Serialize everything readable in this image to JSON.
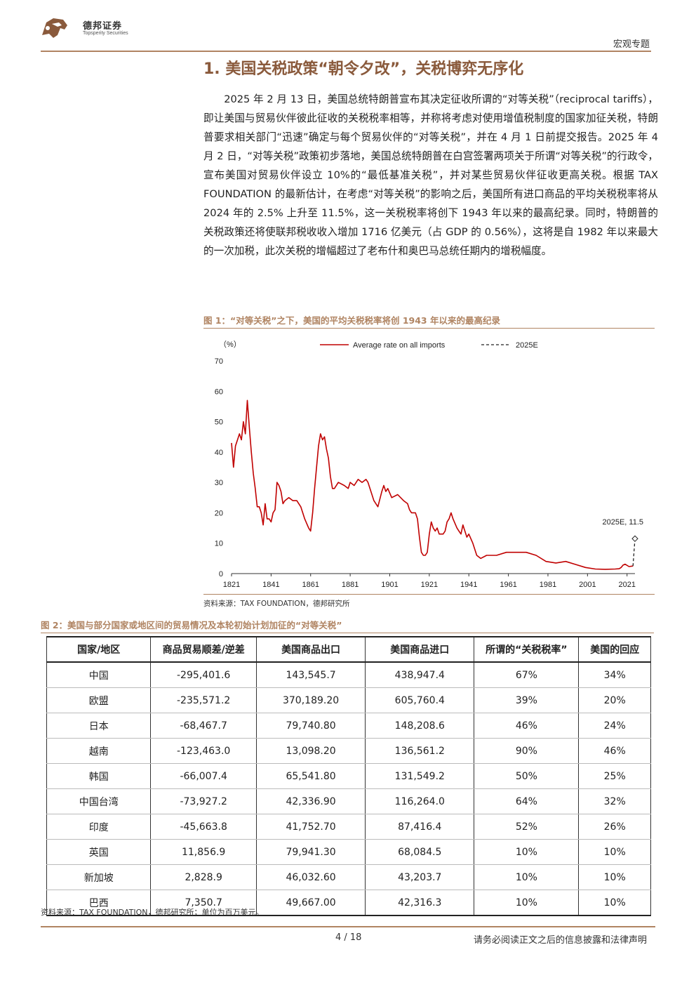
{
  "header": {
    "brand_cn": "德邦证券",
    "brand_en": "Topsperity Securities",
    "category": "宏观专题"
  },
  "section": {
    "title": "1. 美国关税政策“朝令夕改”，关税博弈无序化",
    "paragraph": "2025 年 2 月 13 日，美国总统特朗普宣布其决定征收所谓的“对等关税”（reciprocal tariffs），即让美国与贸易伙伴彼此征收的关税税率相等，并称将考虑对使用增值税制度的国家加征关税，特朗普要求相关部门“迅速”确定与每个贸易伙伴的“对等关税”，并在 4 月 1 日前提交报告。2025 年 4 月 2 日，“对等关税”政策初步落地，美国总统特朗普在白宫签署两项关于所谓“对等关税”的行政令，宣布美国对贸易伙伴设立 10%的“最低基准关税”，并对某些贸易伙伴征收更高关税。根据 TAX FOUNDATION 的最新估计，在考虑“对等关税”的影响之后，美国所有进口商品的平均关税税率将从 2024 年的 2.5% 上升至 11.5%，这一关税税率将创下 1943 年以来的最高纪录。同时，特朗普的关税政策还将使联邦税收收入增加 1716 亿美元（占 GDP 的 0.56%），这将是自 1982 年以来最大的一次加税，此次关税的增幅超过了老布什和奥巴马总统任期内的增税幅度。"
  },
  "figure1": {
    "caption": "图 1：“对等关税”之下，美国的平均关税税率将创 1943 年以来的最高纪录",
    "source": "资料来源：TAX FOUNDATION，德邦研究所"
  },
  "chart_data": {
    "type": "line",
    "ylabel": "（%）",
    "ylim": [
      0,
      70
    ],
    "yticks": [
      0,
      10,
      20,
      30,
      40,
      50,
      60,
      70
    ],
    "xlim": [
      1821,
      2025
    ],
    "xticks": [
      1821,
      1841,
      1861,
      1881,
      1901,
      1921,
      1941,
      1961,
      1981,
      2001,
      2021
    ],
    "legend_position": "top",
    "colors": {
      "series": "#c00000",
      "estimate": "#222222"
    },
    "series": [
      {
        "name": "Average rate on all imports",
        "style": "solid",
        "x": [
          1821,
          1822,
          1823,
          1824,
          1825,
          1826,
          1827,
          1828,
          1829,
          1830,
          1831,
          1832,
          1833,
          1834,
          1835,
          1836,
          1837,
          1838,
          1839,
          1840,
          1841,
          1842,
          1843,
          1844,
          1845,
          1846,
          1847,
          1848,
          1850,
          1852,
          1854,
          1856,
          1857,
          1858,
          1860,
          1861,
          1862,
          1863,
          1864,
          1865,
          1866,
          1867,
          1868,
          1869,
          1870,
          1871,
          1872,
          1873,
          1875,
          1878,
          1880,
          1881,
          1883,
          1885,
          1887,
          1889,
          1890,
          1891,
          1893,
          1895,
          1897,
          1898,
          1899,
          1900,
          1902,
          1905,
          1908,
          1910,
          1911,
          1912,
          1914,
          1915,
          1916,
          1917,
          1918,
          1919,
          1920,
          1921,
          1922,
          1923,
          1924,
          1925,
          1926,
          1927,
          1928,
          1929,
          1930,
          1931,
          1932,
          1933,
          1935,
          1936,
          1937,
          1938,
          1940,
          1941,
          1943,
          1945,
          1947,
          1950,
          1955,
          1960,
          1965,
          1970,
          1975,
          1980,
          1985,
          1990,
          1995,
          2000,
          2005,
          2010,
          2015,
          2017,
          2018,
          2019,
          2020,
          2022,
          2024
        ],
        "values": [
          43,
          35,
          42,
          44,
          46,
          44,
          50,
          46,
          57,
          48,
          40,
          33,
          28,
          22,
          22,
          20,
          16,
          23,
          18,
          18,
          17,
          20,
          21,
          30,
          29,
          27,
          23,
          24,
          25,
          24,
          24,
          22,
          20,
          18,
          15,
          14,
          20,
          28,
          35,
          42,
          46,
          44,
          45,
          41,
          38,
          32,
          28,
          28,
          30,
          29,
          28,
          30,
          29,
          31,
          30,
          31,
          30,
          28,
          24,
          22,
          27,
          29,
          27,
          28,
          25,
          26,
          24,
          23,
          21,
          20,
          20,
          18,
          12,
          7,
          6,
          6,
          7,
          13,
          17,
          15,
          14,
          15,
          13,
          13,
          13,
          14,
          17,
          18,
          20,
          18,
          15,
          14,
          13,
          16,
          12,
          13,
          10,
          6,
          5,
          6,
          6,
          7,
          7,
          7,
          6,
          4,
          3.5,
          4,
          3,
          2,
          1.5,
          1.4,
          1.5,
          1.6,
          2,
          2.8,
          3.1,
          2.3,
          2.5
        ]
      },
      {
        "name": "2025E",
        "style": "dashed",
        "x": [
          2024,
          2025
        ],
        "values": [
          2.5,
          11.5
        ]
      }
    ],
    "annotations": [
      {
        "text": "2025E, 11.5",
        "x": 2025,
        "y": 11.5
      }
    ]
  },
  "figure2": {
    "caption": "图 2：美国与部分国家或地区间的贸易情况及本轮初始计划加征的“对等关税”",
    "headers": [
      "国家/地区",
      "商品贸易顺差/逆差",
      "美国商品出口",
      "美国商品进口",
      "所谓的“关税税率”",
      "美国的回应"
    ],
    "rows": [
      [
        "中国",
        "-295,401.6",
        "143,545.7",
        "438,947.4",
        "67%",
        "34%"
      ],
      [
        "欧盟",
        "-235,571.2",
        "370,189.20",
        "605,760.4",
        "39%",
        "20%"
      ],
      [
        "日本",
        "-68,467.7",
        "79,740.80",
        "148,208.6",
        "46%",
        "24%"
      ],
      [
        "越南",
        "-123,463.0",
        "13,098.20",
        "136,561.2",
        "90%",
        "46%"
      ],
      [
        "韩国",
        "-66,007.4",
        "65,541.80",
        "131,549.2",
        "50%",
        "25%"
      ],
      [
        "中国台湾",
        "-73,927.2",
        "42,336.90",
        "116,264.0",
        "64%",
        "32%"
      ],
      [
        "印度",
        "-45,663.8",
        "41,752.70",
        "87,416.4",
        "52%",
        "26%"
      ],
      [
        "英国",
        "11,856.9",
        "79,941.30",
        "68,084.5",
        "10%",
        "10%"
      ],
      [
        "新加坡",
        "2,828.9",
        "46,032.60",
        "43,203.7",
        "10%",
        "10%"
      ],
      [
        "巴西",
        "7,350.7",
        "49,667.00",
        "42,316.3",
        "10%",
        "10%"
      ]
    ],
    "source": "资料来源：TAX FOUNDATION，德邦研究所；单位为百万美元。"
  },
  "footer": {
    "page": "4 / 18",
    "disclaimer": "请务必阅读正文之后的信息披露和法律声明"
  },
  "accent_color": "#b08462"
}
